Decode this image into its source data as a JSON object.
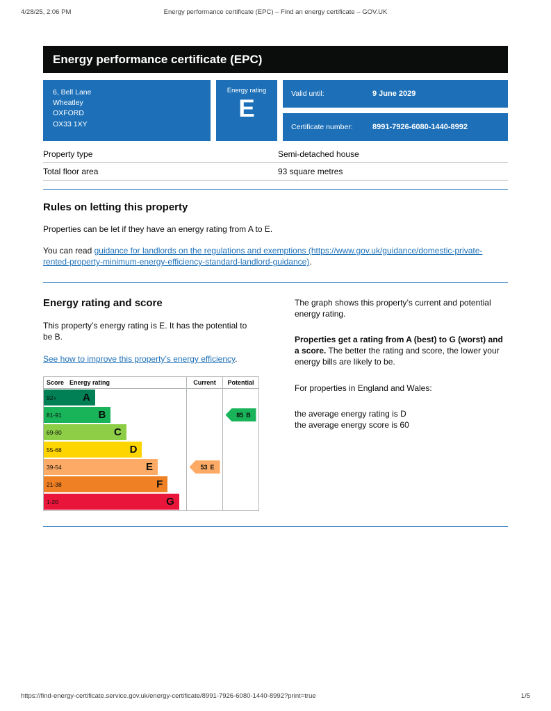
{
  "print_header": {
    "datetime": "4/28/25, 2:06 PM",
    "title": "Energy performance certificate (EPC) – Find an energy certificate – GOV.UK"
  },
  "banner": {
    "title": "Energy performance certificate (EPC)"
  },
  "summary": {
    "address_lines": [
      "6, Bell Lane",
      "Wheatley",
      "OXFORD",
      "OX33 1XY"
    ],
    "energy_rating_label": "Energy rating",
    "energy_rating": "E",
    "valid_until_label": "Valid until:",
    "valid_until_value": "9 June 2029",
    "certificate_number_label": "Certificate number:",
    "certificate_number_value": "8991-7926-6080-1440-8992",
    "accent_color": "#1d70b8"
  },
  "property_facts": [
    {
      "label": "Property type",
      "value": "Semi-detached house"
    },
    {
      "label": "Total floor area",
      "value": "93 square metres"
    }
  ],
  "rules_section": {
    "heading": "Rules on letting this property",
    "para1": "Properties can be let if they have an energy rating from A to E.",
    "para2_prefix": "You can read ",
    "para2_link": "guidance for landlords on the regulations and exemptions (https://www.gov.uk/guidance/domestic-private-rented-property-minimum-energy-efficiency-standard-landlord-guidance)",
    "para2_suffix": "."
  },
  "rating_section": {
    "heading": "Energy rating and score",
    "para1": "This property’s energy rating is E. It has the potential to be B.",
    "improve_link": "See how to improve this property’s energy efficiency",
    "improve_link_suffix": ".",
    "right_para1": "The graph shows this property’s current and potential energy rating.",
    "right_para2_bold": "Properties get a rating from A (best) to G (worst) and a score.",
    "right_para2_rest": " The better the rating and score, the lower your energy bills are likely to be.",
    "right_para3": "For properties in England and Wales:",
    "right_para4_line1": "the average energy rating is D",
    "right_para4_line2": "the average energy score is 60"
  },
  "chart_data": {
    "type": "epc-rating-bar",
    "headers": {
      "score": "Score",
      "rating": "Energy rating",
      "current": "Current",
      "potential": "Potential"
    },
    "bands": [
      {
        "score": "92+",
        "letter": "A",
        "color": "#008054",
        "width_pct": 36
      },
      {
        "score": "81-91",
        "letter": "B",
        "color": "#19b459",
        "width_pct": 47
      },
      {
        "score": "69-80",
        "letter": "C",
        "color": "#8dce46",
        "width_pct": 58
      },
      {
        "score": "55-68",
        "letter": "D",
        "color": "#ffd500",
        "width_pct": 69
      },
      {
        "score": "39-54",
        "letter": "E",
        "color": "#fcaa65",
        "width_pct": 80
      },
      {
        "score": "21-38",
        "letter": "F",
        "color": "#ef8023",
        "width_pct": 87
      },
      {
        "score": "1-20",
        "letter": "G",
        "color": "#e9153b",
        "width_pct": 95
      }
    ],
    "current": {
      "score": 53,
      "letter": "E",
      "band_color": "#fcaa65",
      "row_index": 4
    },
    "potential": {
      "score": 85,
      "letter": "B",
      "band_color": "#19b459",
      "row_index": 1
    }
  },
  "footer": {
    "url": "https://find-energy-certificate.service.gov.uk/energy-certificate/8991-7926-6080-1440-8992?print=true",
    "page_indicator": "1/5"
  }
}
